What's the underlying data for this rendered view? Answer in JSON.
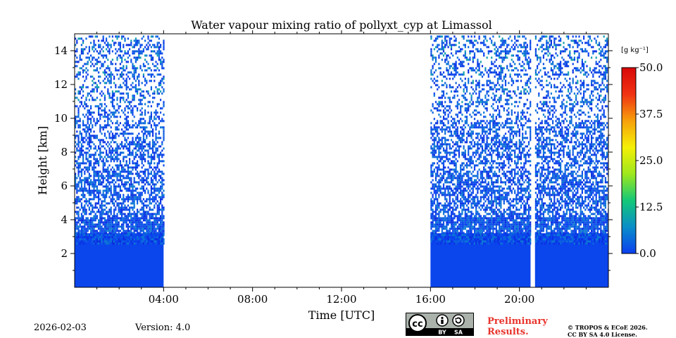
{
  "chart_data": {
    "type": "heatmap",
    "title": "Water vapour mixing ratio of pollyxt_cyp at Limassol",
    "xlabel": "Time [UTC]",
    "ylabel": "Height [km]",
    "xlim_hours": [
      0,
      24
    ],
    "ylim_km": [
      0,
      15
    ],
    "x_ticks": [
      {
        "hour": 4,
        "label": "04:00"
      },
      {
        "hour": 8,
        "label": "08:00"
      },
      {
        "hour": 12,
        "label": "12:00"
      },
      {
        "hour": 16,
        "label": "16:00"
      },
      {
        "hour": 20,
        "label": "20:00"
      }
    ],
    "y_ticks": [
      {
        "km": 2,
        "label": "2"
      },
      {
        "km": 4,
        "label": "4"
      },
      {
        "km": 6,
        "label": "6"
      },
      {
        "km": 8,
        "label": "8"
      },
      {
        "km": 10,
        "label": "10"
      },
      {
        "km": 12,
        "label": "12"
      },
      {
        "km": 14,
        "label": "14"
      }
    ],
    "data_segments": [
      {
        "start_hour": 0.0,
        "end_hour": 4.0
      },
      {
        "start_hour": 16.0,
        "end_hour": 20.5
      },
      {
        "start_hour": 20.7,
        "end_hour": 24.0
      }
    ],
    "profile_note": "Dense low values (~0-3 g/kg) below about 4 km, noisy sparse data above, no measurement 04:00-16:00",
    "colorbar": {
      "unit_label": "[g kg⁻¹]",
      "min": 0.0,
      "max": 50.0,
      "ticks": [
        {
          "value": 0.0,
          "label": "0.0"
        },
        {
          "value": 12.5,
          "label": "12.5"
        },
        {
          "value": 25.0,
          "label": "25.0"
        },
        {
          "value": 37.5,
          "label": "37.5"
        },
        {
          "value": 50.0,
          "label": "50.0"
        }
      ],
      "colors": [
        "#0b3ff0",
        "#0a8ec8",
        "#14c878",
        "#9ee81c",
        "#f5f005",
        "#f7a00a",
        "#f03212",
        "#d80808"
      ]
    }
  },
  "footer": {
    "date": "2026-02-03",
    "version": "Version: 4.0",
    "license_badge": {
      "cc": "cc",
      "by": "BY",
      "sa": "SA"
    },
    "preliminary_line1": "Preliminary",
    "preliminary_line2": "Results.",
    "copyright_line1": "© TROPOS & ECoE 2026.",
    "copyright_line2": "CC BY SA 4.0 License."
  }
}
